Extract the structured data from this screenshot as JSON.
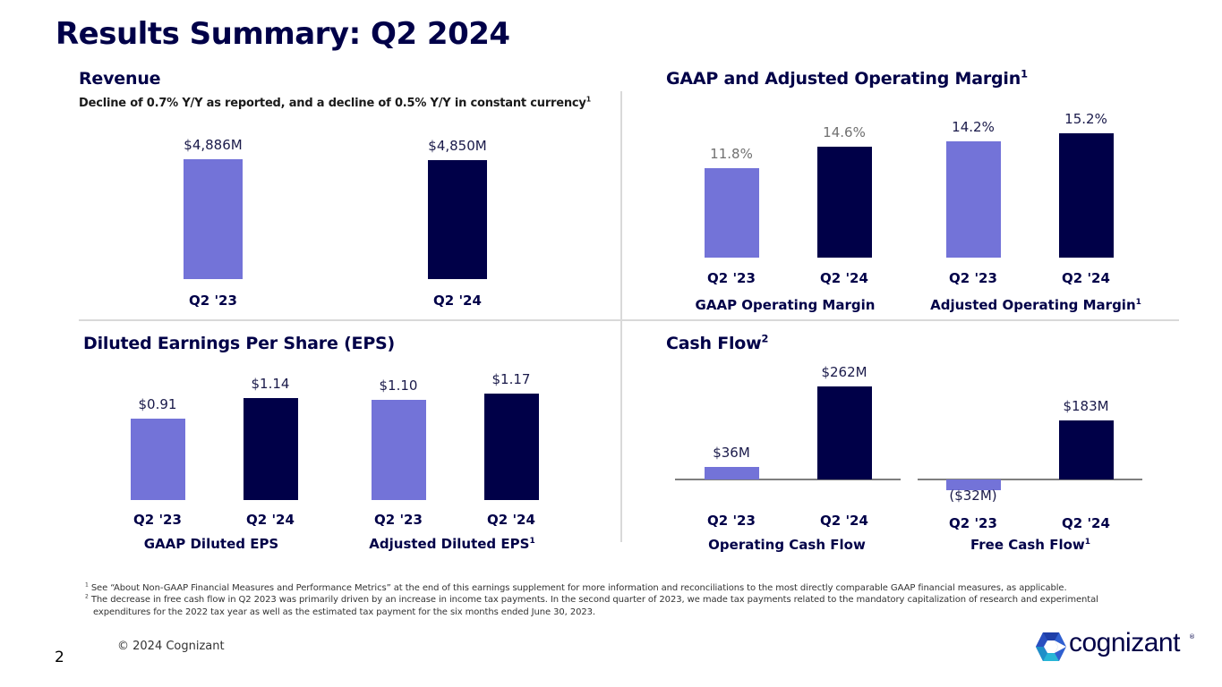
{
  "page": {
    "title": "Results Summary: Q2 2024",
    "page_number": "2",
    "copyright": "© 2024 Cognizant",
    "logo_text": "cognizant",
    "logo_reg": "®",
    "colors": {
      "prior_year": "#7373d8",
      "current_year": "#000048",
      "title": "#000048"
    }
  },
  "sections": {
    "revenue": {
      "title": "Revenue",
      "subtitle": "Decline of 0.7% Y/Y as reported, and a decline of 0.5% Y/Y in constant currency",
      "subtitle_sup": "1"
    },
    "margin": {
      "title": "GAAP and Adjusted Operating Margin",
      "title_sup": "1"
    },
    "eps": {
      "title": "Diluted Earnings Per Share (EPS)"
    },
    "cash": {
      "title": "Cash Flow",
      "title_sup": "2"
    }
  },
  "footnotes": [
    {
      "marker": "1",
      "text": "See “About Non-GAAP Financial Measures and Performance Metrics” at the end of this earnings supplement for more information and reconciliations to the most directly comparable GAAP financial measures, as applicable."
    },
    {
      "marker": "2",
      "text": "The decrease in free cash flow in Q2 2023 was primarily driven by an increase in income tax payments. In the second quarter of 2023, we made tax payments related to the mandatory capitalization of research and experimental",
      "continuation": "expenditures for the 2022 tax year as well as the estimated tax payment for the six months ended June 30, 2023."
    }
  ],
  "chart_data": [
    {
      "type": "bar",
      "title": "Revenue",
      "categories": [
        "Q2 '23",
        "Q2 '24"
      ],
      "values": [
        4886,
        4850
      ],
      "labels": [
        "$4,886M",
        "$4,850M"
      ],
      "unit": "USD millions",
      "group_label": ""
    },
    {
      "type": "bar",
      "title": "GAAP Operating Margin",
      "group_label": "GAAP Operating Margin",
      "group_sup": "",
      "categories": [
        "Q2 '23",
        "Q2 '24"
      ],
      "values": [
        11.8,
        14.6
      ],
      "labels": [
        "11.8%",
        "14.6%"
      ],
      "unit": "%"
    },
    {
      "type": "bar",
      "title": "Adjusted Operating Margin",
      "group_label": "Adjusted Operating Margin",
      "group_sup": "1",
      "categories": [
        "Q2 '23",
        "Q2 '24"
      ],
      "values": [
        14.2,
        15.2
      ],
      "labels": [
        "14.2%",
        "15.2%"
      ],
      "unit": "%"
    },
    {
      "type": "bar",
      "title": "GAAP Diluted EPS",
      "group_label": "GAAP Diluted EPS",
      "group_sup": "",
      "categories": [
        "Q2 '23",
        "Q2 '24"
      ],
      "values": [
        0.91,
        1.14
      ],
      "labels": [
        "$0.91",
        "$1.14"
      ],
      "unit": "USD"
    },
    {
      "type": "bar",
      "title": "Adjusted Diluted EPS",
      "group_label": "Adjusted Diluted EPS",
      "group_sup": "1",
      "categories": [
        "Q2 '23",
        "Q2 '24"
      ],
      "values": [
        1.1,
        1.17
      ],
      "labels": [
        "$1.10",
        "$1.17"
      ],
      "unit": "USD"
    },
    {
      "type": "bar",
      "title": "Operating Cash Flow",
      "group_label": "Operating Cash Flow",
      "group_sup": "",
      "categories": [
        "Q2 '23",
        "Q2 '24"
      ],
      "values": [
        36,
        262
      ],
      "labels": [
        "$36M",
        "$262M"
      ],
      "unit": "USD millions"
    },
    {
      "type": "bar",
      "title": "Free Cash Flow",
      "group_label": "Free Cash Flow",
      "group_sup": "1",
      "categories": [
        "Q2 '23",
        "Q2 '24"
      ],
      "values": [
        -32,
        183
      ],
      "labels": [
        "($32M)",
        "$183M"
      ],
      "unit": "USD millions"
    }
  ]
}
